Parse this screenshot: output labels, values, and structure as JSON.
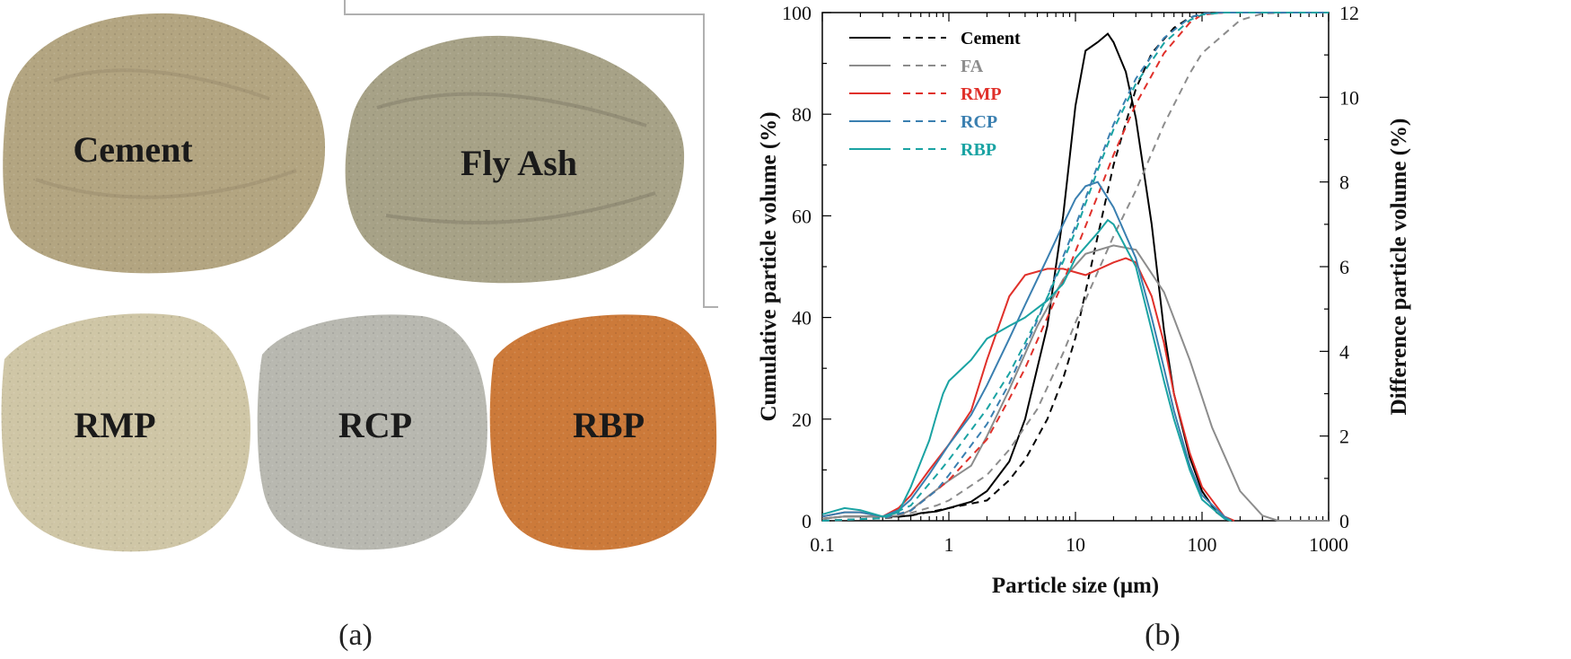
{
  "panel_a": {
    "label": "(a)",
    "samples": [
      {
        "label": "Cement",
        "color": "#b3a581"
      },
      {
        "label": "Fly Ash",
        "color": "#a7a287"
      },
      {
        "label": "RMP",
        "color": "#cfc6a6"
      },
      {
        "label": "RCP",
        "color": "#b8b8b0"
      },
      {
        "label": "RBP",
        "color": "#cc7a3a"
      }
    ]
  },
  "panel_b": {
    "label": "(b)"
  },
  "chart_data": {
    "type": "line",
    "xscale": "log",
    "xlim": [
      0.1,
      1000
    ],
    "x_ticks": [
      0.1,
      1,
      10,
      100,
      1000
    ],
    "x_tick_labels": [
      "0.1",
      "1",
      "10",
      "100",
      "1000"
    ],
    "xlabel": "Particle size (μm)",
    "ylabel_left": "Cumulative particle volume (%)",
    "ylim_left": [
      0,
      100
    ],
    "y_ticks_left": [
      "0",
      "20",
      "40",
      "60",
      "80",
      "100"
    ],
    "ylabel_right": "Difference particle volume (%)",
    "ylim_right": [
      0,
      12
    ],
    "y_ticks_right": [
      "0",
      "2",
      "4",
      "6",
      "8",
      "10",
      "12"
    ],
    "legend_position": "top-left",
    "series": [
      {
        "name": "Cement",
        "color": "#000000",
        "difference": [
          [
            0.1,
            0.05
          ],
          [
            0.15,
            0.1
          ],
          [
            0.2,
            0.1
          ],
          [
            0.3,
            0.1
          ],
          [
            0.4,
            0.1
          ],
          [
            0.5,
            0.12
          ],
          [
            0.6,
            0.18
          ],
          [
            0.8,
            0.22
          ],
          [
            1,
            0.3
          ],
          [
            1.5,
            0.45
          ],
          [
            2,
            0.7
          ],
          [
            3,
            1.4
          ],
          [
            4,
            2.4
          ],
          [
            6,
            4.6
          ],
          [
            8,
            7.2
          ],
          [
            10,
            9.8
          ],
          [
            12,
            11.1
          ],
          [
            15,
            11.3
          ],
          [
            18,
            11.5
          ],
          [
            20,
            11.3
          ],
          [
            25,
            10.6
          ],
          [
            30,
            9.5
          ],
          [
            40,
            7.0
          ],
          [
            50,
            4.5
          ],
          [
            60,
            3.0
          ],
          [
            80,
            1.5
          ],
          [
            100,
            0.7
          ],
          [
            130,
            0.2
          ],
          [
            160,
            0
          ]
        ],
        "cumulative": [
          [
            0.1,
            0
          ],
          [
            0.3,
            0.5
          ],
          [
            0.5,
            1
          ],
          [
            0.8,
            2
          ],
          [
            1,
            2.5
          ],
          [
            2,
            4
          ],
          [
            3,
            8
          ],
          [
            4,
            12
          ],
          [
            6,
            20
          ],
          [
            8,
            28
          ],
          [
            10,
            36
          ],
          [
            15,
            56
          ],
          [
            20,
            70
          ],
          [
            30,
            85
          ],
          [
            40,
            92
          ],
          [
            60,
            97
          ],
          [
            80,
            99
          ],
          [
            100,
            99.8
          ],
          [
            150,
            100
          ],
          [
            1000,
            100
          ]
        ]
      },
      {
        "name": "FA",
        "color": "#8c8c8c",
        "difference": [
          [
            0.1,
            0.05
          ],
          [
            0.15,
            0.1
          ],
          [
            0.2,
            0.1
          ],
          [
            0.3,
            0.1
          ],
          [
            0.4,
            0.12
          ],
          [
            0.5,
            0.25
          ],
          [
            0.7,
            0.6
          ],
          [
            0.9,
            0.85
          ],
          [
            1,
            0.95
          ],
          [
            1.5,
            1.3
          ],
          [
            2,
            2.0
          ],
          [
            3,
            3.1
          ],
          [
            5,
            4.6
          ],
          [
            8,
            5.7
          ],
          [
            12,
            6.3
          ],
          [
            20,
            6.5
          ],
          [
            30,
            6.4
          ],
          [
            50,
            5.4
          ],
          [
            80,
            3.8
          ],
          [
            120,
            2.2
          ],
          [
            200,
            0.7
          ],
          [
            300,
            0.12
          ],
          [
            400,
            0
          ],
          [
            1000,
            0
          ]
        ],
        "cumulative": [
          [
            0.1,
            0
          ],
          [
            0.3,
            0.5
          ],
          [
            0.5,
            1.5
          ],
          [
            0.8,
            3
          ],
          [
            1,
            4
          ],
          [
            2,
            9
          ],
          [
            3,
            14
          ],
          [
            5,
            22
          ],
          [
            8,
            33
          ],
          [
            10,
            39
          ],
          [
            20,
            56
          ],
          [
            30,
            65
          ],
          [
            50,
            78
          ],
          [
            80,
            88
          ],
          [
            100,
            92
          ],
          [
            200,
            98.5
          ],
          [
            300,
            99.8
          ],
          [
            500,
            100
          ],
          [
            1000,
            100
          ]
        ]
      },
      {
        "name": "RMP",
        "color": "#e0302a",
        "difference": [
          [
            0.1,
            0.1
          ],
          [
            0.15,
            0.2
          ],
          [
            0.2,
            0.2
          ],
          [
            0.3,
            0.1
          ],
          [
            0.4,
            0.3
          ],
          [
            0.5,
            0.6
          ],
          [
            0.7,
            1.2
          ],
          [
            1,
            1.8
          ],
          [
            1.5,
            2.6
          ],
          [
            2,
            3.8
          ],
          [
            3,
            5.3
          ],
          [
            4,
            5.8
          ],
          [
            6,
            5.95
          ],
          [
            8,
            5.95
          ],
          [
            12,
            5.8
          ],
          [
            20,
            6.1
          ],
          [
            25,
            6.2
          ],
          [
            30,
            6.1
          ],
          [
            40,
            5.3
          ],
          [
            50,
            4.2
          ],
          [
            60,
            3.0
          ],
          [
            80,
            1.6
          ],
          [
            100,
            0.8
          ],
          [
            150,
            0.1
          ],
          [
            180,
            0
          ]
        ],
        "cumulative": [
          [
            0.1,
            0
          ],
          [
            0.3,
            0.5
          ],
          [
            0.5,
            2
          ],
          [
            0.8,
            6
          ],
          [
            1,
            8
          ],
          [
            2,
            16
          ],
          [
            3,
            24
          ],
          [
            4,
            30
          ],
          [
            6,
            40
          ],
          [
            8,
            47
          ],
          [
            10,
            53
          ],
          [
            15,
            64
          ],
          [
            20,
            72
          ],
          [
            30,
            82
          ],
          [
            50,
            92
          ],
          [
            80,
            98
          ],
          [
            100,
            99.6
          ],
          [
            150,
            100
          ],
          [
            1000,
            100
          ]
        ]
      },
      {
        "name": "RCP",
        "color": "#3a7fb0",
        "difference": [
          [
            0.1,
            0.1
          ],
          [
            0.15,
            0.2
          ],
          [
            0.2,
            0.2
          ],
          [
            0.3,
            0.1
          ],
          [
            0.4,
            0.25
          ],
          [
            0.5,
            0.5
          ],
          [
            0.7,
            1.1
          ],
          [
            1,
            1.8
          ],
          [
            1.5,
            2.5
          ],
          [
            2,
            3.2
          ],
          [
            3,
            4.3
          ],
          [
            4,
            5.1
          ],
          [
            6,
            6.2
          ],
          [
            8,
            7.0
          ],
          [
            10,
            7.6
          ],
          [
            12,
            7.9
          ],
          [
            15,
            8.0
          ],
          [
            20,
            7.4
          ],
          [
            30,
            6.2
          ],
          [
            40,
            4.8
          ],
          [
            50,
            3.6
          ],
          [
            60,
            2.6
          ],
          [
            80,
            1.3
          ],
          [
            100,
            0.6
          ],
          [
            150,
            0.1
          ],
          [
            170,
            0
          ]
        ],
        "cumulative": [
          [
            0.1,
            0
          ],
          [
            0.3,
            0.5
          ],
          [
            0.5,
            2
          ],
          [
            0.8,
            6
          ],
          [
            1,
            9
          ],
          [
            2,
            19
          ],
          [
            3,
            27
          ],
          [
            4,
            34
          ],
          [
            6,
            44
          ],
          [
            8,
            52
          ],
          [
            10,
            58
          ],
          [
            15,
            70
          ],
          [
            20,
            78
          ],
          [
            30,
            87
          ],
          [
            50,
            95
          ],
          [
            80,
            99
          ],
          [
            100,
            99.8
          ],
          [
            150,
            100
          ],
          [
            1000,
            100
          ]
        ]
      },
      {
        "name": "RBP",
        "color": "#1aa3a3",
        "difference": [
          [
            0.1,
            0.15
          ],
          [
            0.15,
            0.3
          ],
          [
            0.2,
            0.25
          ],
          [
            0.3,
            0.1
          ],
          [
            0.4,
            0.2
          ],
          [
            0.5,
            0.8
          ],
          [
            0.7,
            1.9
          ],
          [
            0.8,
            2.5
          ],
          [
            0.9,
            3.0
          ],
          [
            1,
            3.3
          ],
          [
            1.5,
            3.8
          ],
          [
            2,
            4.3
          ],
          [
            3,
            4.6
          ],
          [
            4,
            4.8
          ],
          [
            6,
            5.2
          ],
          [
            8,
            5.6
          ],
          [
            10,
            6.2
          ],
          [
            15,
            6.8
          ],
          [
            18,
            7.1
          ],
          [
            20,
            7.0
          ],
          [
            30,
            6.0
          ],
          [
            40,
            4.5
          ],
          [
            50,
            3.3
          ],
          [
            60,
            2.4
          ],
          [
            80,
            1.2
          ],
          [
            100,
            0.5
          ],
          [
            150,
            0.05
          ],
          [
            170,
            0
          ]
        ],
        "cumulative": [
          [
            0.1,
            0
          ],
          [
            0.3,
            0.5
          ],
          [
            0.5,
            3
          ],
          [
            0.8,
            9
          ],
          [
            1,
            12
          ],
          [
            2,
            22
          ],
          [
            3,
            29
          ],
          [
            4,
            35
          ],
          [
            6,
            44
          ],
          [
            8,
            51
          ],
          [
            10,
            57
          ],
          [
            15,
            69
          ],
          [
            20,
            77
          ],
          [
            30,
            86
          ],
          [
            50,
            94
          ],
          [
            80,
            98.5
          ],
          [
            100,
            99.6
          ],
          [
            150,
            100
          ],
          [
            1000,
            100
          ]
        ]
      }
    ]
  }
}
